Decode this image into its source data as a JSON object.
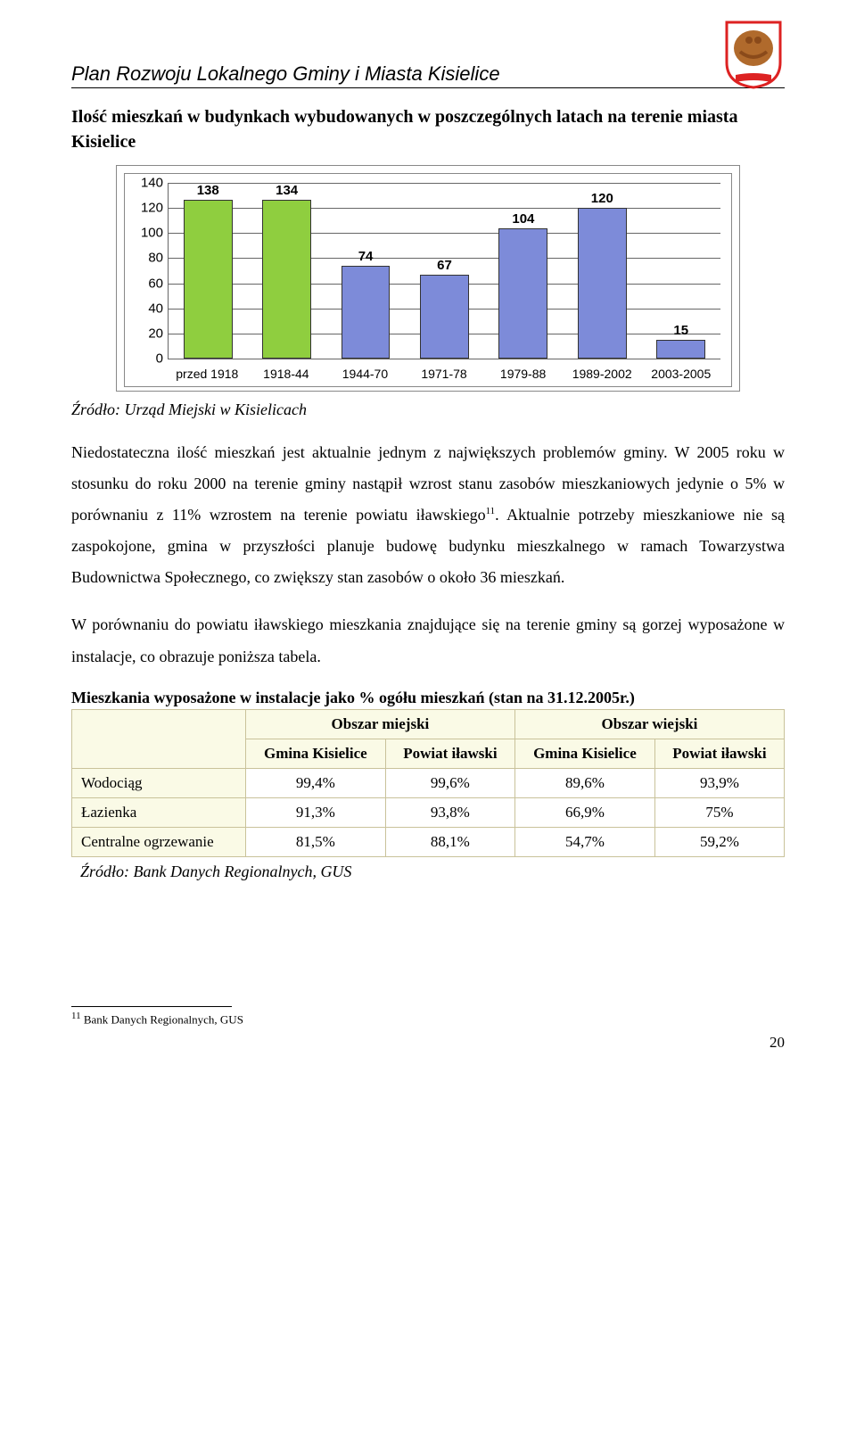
{
  "header": {
    "title": "Plan Rozwoju Lokalnego Gminy i Miasta Kisielice",
    "crest_colors": {
      "shield_bg": "#ffffff",
      "shield_border": "#d22",
      "eagle": "#8a4a1a",
      "banner": "#d22"
    }
  },
  "section_title": "Ilość mieszkań w budynkach wybudowanych w poszczególnych latach na terenie miasta Kisielice",
  "chart": {
    "type": "bar",
    "y_max": 140,
    "y_step": 20,
    "y_ticks": [
      0,
      20,
      40,
      60,
      80,
      100,
      120,
      140
    ],
    "grid_color": "#666666",
    "background_color": "#ffffff",
    "label_fontsize": 15,
    "categories": [
      "przed 1918",
      "1918-44",
      "1944-70",
      "1971-78",
      "1979-88",
      "1989-2002",
      "2003-2005"
    ],
    "values": [
      138,
      134,
      74,
      67,
      104,
      120,
      15
    ],
    "bar_colors": [
      "#8fce3f",
      "#8fce3f",
      "#7d8bd9",
      "#7d8bd9",
      "#7d8bd9",
      "#7d8bd9",
      "#7d8bd9"
    ],
    "bar_border_color": "#333333"
  },
  "source1": "Źródło: Urząd Miejski w Kisielicach",
  "paragraph1": "Niedostateczna ilość mieszkań jest aktualnie jednym z największych problemów gminy. W 2005 roku w stosunku do roku 2000 na terenie gminy nastąpił wzrost stanu zasobów mieszkaniowych jedynie o 5% w porównaniu z 11% wzrostem na terenie powiatu iławskiego",
  "paragraph1_sup": "11",
  "paragraph1_cont": ". Aktualnie potrzeby mieszkaniowe nie są zaspokojone, gmina w przyszłości planuje budowę budynku mieszkalnego w ramach Towarzystwa Budownictwa Społecznego, co zwiększy stan zasobów o około 36 mieszkań.",
  "paragraph2": "W porównaniu do powiatu iławskiego mieszkania znajdujące się na terenie gminy są gorzej wyposażone w instalacje, co obrazuje poniższa tabela.",
  "table_title": "Mieszkania wyposażone w instalacje jako % ogółu mieszkań (stan na 31.12.2005r.)",
  "table": {
    "group_headers": [
      "Obszar miejski",
      "Obszar wiejski"
    ],
    "sub_headers": [
      "Gmina Kisielice",
      "Powiat iławski",
      "Gmina Kisielice",
      "Powiat iławski"
    ],
    "rows": [
      {
        "label": "Wodociąg",
        "values": [
          "99,4%",
          "99,6%",
          "89,6%",
          "93,9%"
        ]
      },
      {
        "label": "Łazienka",
        "values": [
          "91,3%",
          "93,8%",
          "66,9%",
          "75%"
        ]
      },
      {
        "label": "Centralne ogrzewanie",
        "values": [
          "81,5%",
          "88,1%",
          "54,7%",
          "59,2%"
        ]
      }
    ],
    "header_bg": "#fafae6",
    "border_color": "#c9c29a"
  },
  "source2": "Źródło: Bank Danych Regionalnych, GUS",
  "footnote": {
    "num": "11",
    "text": "Bank Danych Regionalnych, GUS"
  },
  "page_number": "20"
}
